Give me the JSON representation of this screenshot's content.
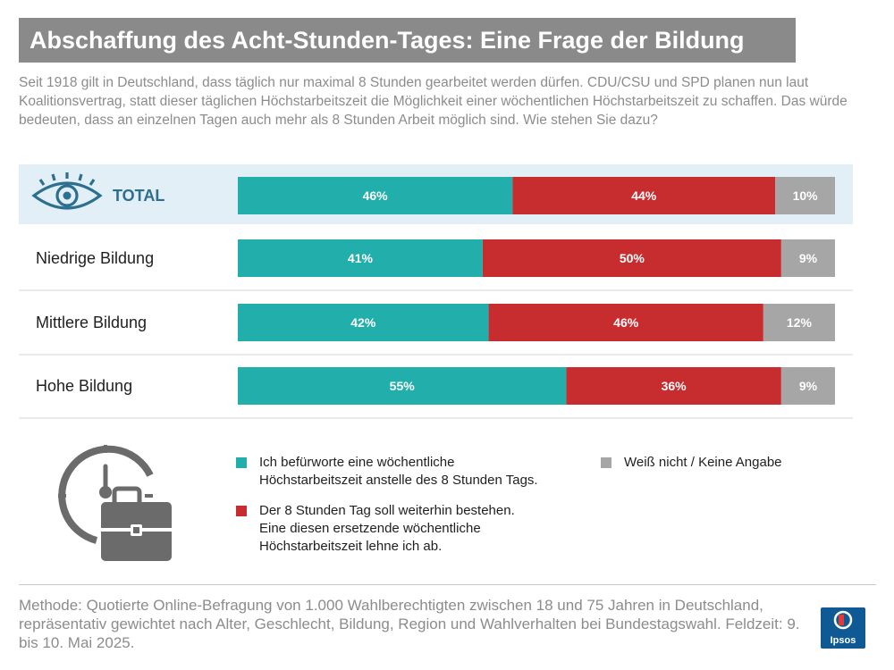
{
  "title": "Abschaffung des Acht-Stunden-Tages: Eine Frage der Bildung",
  "subtitle": "Seit 1918 gilt in Deutschland, dass täglich nur maximal 8 Stunden gearbeitet werden dürfen. CDU/CSU und SPD planen nun laut Koalitionsvertrag, statt dieser täglichen Höchstarbeitszeit die Möglichkeit einer wöchentlichen Höchstarbeitszeit zu schaffen. Das würde bedeuten, dass an einzelnen Tagen auch mehr als 8 Stunden Arbeit möglich sind. Wie stehen Sie dazu?",
  "colors": {
    "befuerworte": "#22aeab",
    "bestehen": "#c72d2f",
    "weiss_nicht": "#a6a6a6",
    "highlight_bg": "#e2eff6",
    "total_label": "#2d6f8f",
    "icon": "#6b6b6b"
  },
  "chart_data": {
    "type": "bar",
    "orientation": "horizontal",
    "stacked": true,
    "percent_stacked": true,
    "categories": [
      "TOTAL",
      "Niedrige Bildung",
      "Mittlere Bildung",
      "Hohe Bildung"
    ],
    "series": [
      {
        "name": "Ich befürworte eine wöchentliche Höchstarbeitszeit anstelle des 8 Stunden Tags.",
        "values": [
          46,
          41,
          42,
          55
        ],
        "labels": [
          "46%",
          "41%",
          "42%",
          "55%"
        ]
      },
      {
        "name": "Der 8 Stunden Tag soll weiterhin bestehen. Eine diesen ersetzende wöchentliche Höchstarbeitszeit lehne ich ab.",
        "values": [
          44,
          50,
          46,
          36
        ],
        "labels": [
          "44%",
          "50%",
          "46%",
          "36%"
        ]
      },
      {
        "name": "Weiß nicht / Keine Angabe",
        "values": [
          10,
          9,
          12,
          9
        ],
        "labels": [
          "10%",
          "9%",
          "12%",
          "9%"
        ]
      }
    ],
    "highlighted_category": "TOTAL",
    "legend_position": "bottom"
  },
  "legend": {
    "befuerworte_line1": "Ich befürworte eine wöchentliche",
    "befuerworte_line2": "Höchstarbeitszeit anstelle des 8 Stunden Tags.",
    "bestehen_line1": "Der 8 Stunden Tag soll weiterhin bestehen.",
    "bestehen_line2": "Eine diesen ersetzende wöchentliche",
    "bestehen_line3": "Höchstarbeitszeit lehne ich ab.",
    "weiss_nicht": "Weiß nicht / Keine Angabe"
  },
  "icons": {
    "total": "eye-icon",
    "legend": "clock-briefcase-icon"
  },
  "method": "Methode: Quotierte Online-Befragung von 1.000 Wahlberechtigten zwischen 18 und 75 Jahren in Deutschland, repräsentativ gewichtet nach Alter, Geschlecht, Bildung, Region und Wahlverhalten bei Bundestagswahl. Feldzeit: 9. bis 10. Mai 2025.",
  "logo_text": "Ipsos"
}
